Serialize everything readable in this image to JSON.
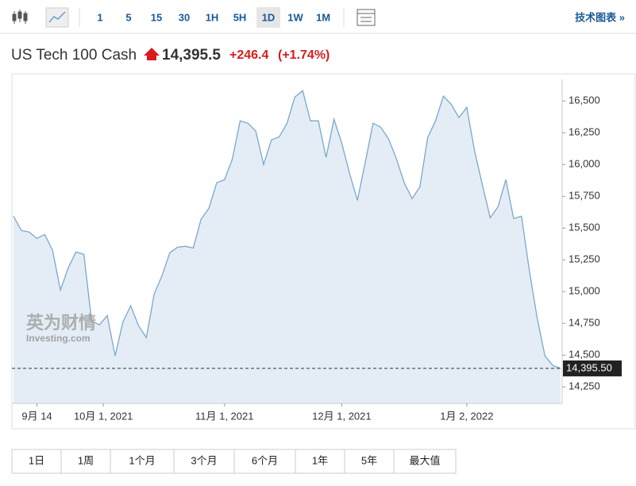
{
  "toolbar": {
    "intervals": [
      "1",
      "5",
      "15",
      "30",
      "1H",
      "5H",
      "1D",
      "1W",
      "1M"
    ],
    "selected": "1D",
    "technical": "技术图表 »"
  },
  "header": {
    "name": "US Tech 100 Cash",
    "price": "14,395.5",
    "change": "+246.4",
    "change_pct": "(+1.74%)"
  },
  "watermark": {
    "cn": "英为财情",
    "en": "Investing.com"
  },
  "ranges": [
    "1日",
    "1周",
    "1个月",
    "3个月",
    "6个月",
    "1年",
    "5年",
    "最大值"
  ],
  "chart_data": {
    "type": "area",
    "color": "#7ba7cd",
    "fill": "#e4edf5",
    "x": [
      "2021-09-08",
      "2021-09-10",
      "2021-09-12",
      "2021-09-14",
      "2021-09-16",
      "2021-09-18",
      "2021-09-20",
      "2021-09-22",
      "2021-09-24",
      "2021-09-26",
      "2021-09-28",
      "2021-09-30",
      "2021-10-02",
      "2021-10-04",
      "2021-10-06",
      "2021-10-08",
      "2021-10-10",
      "2021-10-12",
      "2021-10-14",
      "2021-10-16",
      "2021-10-18",
      "2021-10-20",
      "2021-10-22",
      "2021-10-24",
      "2021-10-26",
      "2021-10-28",
      "2021-10-30",
      "2021-11-01",
      "2021-11-03",
      "2021-11-05",
      "2021-11-07",
      "2021-11-09",
      "2021-11-11",
      "2021-11-13",
      "2021-11-15",
      "2021-11-17",
      "2021-11-19",
      "2021-11-21",
      "2021-11-23",
      "2021-11-25",
      "2021-11-27",
      "2021-11-29",
      "2021-12-01",
      "2021-12-03",
      "2021-12-05",
      "2021-12-07",
      "2021-12-09",
      "2021-12-11",
      "2021-12-13",
      "2021-12-15",
      "2021-12-17",
      "2021-12-19",
      "2021-12-21",
      "2021-12-23",
      "2021-12-25",
      "2021-12-27",
      "2021-12-29",
      "2021-12-31",
      "2022-01-02",
      "2022-01-04",
      "2022-01-06",
      "2022-01-08",
      "2022-01-10",
      "2022-01-12",
      "2022-01-14",
      "2022-01-16",
      "2022-01-18",
      "2022-01-20",
      "2022-01-22",
      "2022-01-24",
      "2022-01-26"
    ],
    "values": [
      15594,
      15481,
      15469,
      15419,
      15450,
      15325,
      15012,
      15187,
      15312,
      15294,
      14769,
      14738,
      14812,
      14494,
      14762,
      14888,
      14731,
      14638,
      14981,
      15125,
      15306,
      15350,
      15356,
      15344,
      15569,
      15656,
      15856,
      15881,
      16044,
      16344,
      16325,
      16263,
      16000,
      16194,
      16219,
      16325,
      16531,
      16581,
      16344,
      16344,
      16056,
      16356,
      16169,
      15931,
      15719,
      16013,
      16325,
      16294,
      16200,
      16044,
      15856,
      15731,
      15825,
      16213,
      16344,
      16538,
      16475,
      16369,
      16450,
      16106,
      15838,
      15581,
      15669,
      15881,
      15575,
      15594,
      15169,
      14794,
      14494,
      14419,
      14395.5
    ],
    "xlim": [
      "2021-09-08",
      "2022-01-26"
    ],
    "xticks": [
      {
        "value": "2021-09-14",
        "label": "9月 14"
      },
      {
        "value": "2021-10-01",
        "label": "10月 1, 2021"
      },
      {
        "value": "2021-11-01",
        "label": "11月 1, 2021"
      },
      {
        "value": "2021-12-01",
        "label": "12月 1, 2021"
      },
      {
        "value": "2022-01-02",
        "label": "1月 2, 2022"
      }
    ],
    "ylim": [
      14120,
      16670
    ],
    "yticks": [
      {
        "value": 14250,
        "label": "14,250"
      },
      {
        "value": 14500,
        "label": "14,500"
      },
      {
        "value": 14750,
        "label": "14,750"
      },
      {
        "value": 15000,
        "label": "15,000"
      },
      {
        "value": 15250,
        "label": "15,250"
      },
      {
        "value": 15500,
        "label": "15,500"
      },
      {
        "value": 15750,
        "label": "15,750"
      },
      {
        "value": 16000,
        "label": "16,000"
      },
      {
        "value": 16250,
        "label": "16,250"
      },
      {
        "value": 16500,
        "label": "16,500"
      }
    ],
    "last_price": {
      "value": 14395.5,
      "label": "14,395.50"
    }
  }
}
